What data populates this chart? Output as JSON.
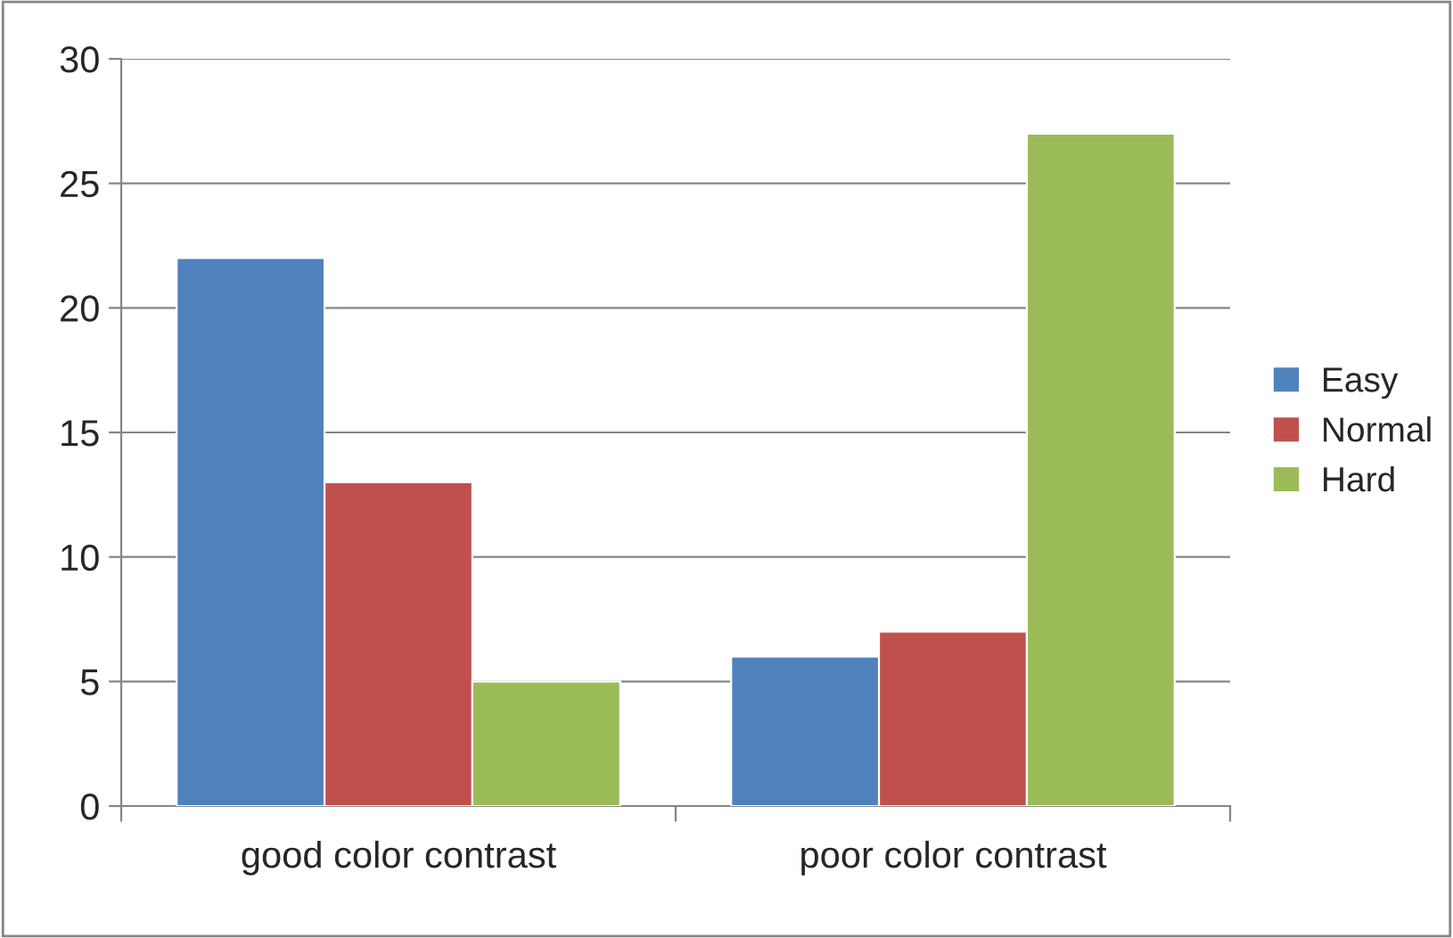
{
  "chart_data": {
    "type": "bar",
    "categories": [
      "good color contrast",
      "poor color contrast"
    ],
    "series": [
      {
        "name": "Easy",
        "color": "#4f81bd",
        "values": [
          22,
          6
        ]
      },
      {
        "name": "Normal",
        "color": "#c0504d",
        "values": [
          13,
          7
        ]
      },
      {
        "name": "Hard",
        "color": "#9bbb59",
        "values": [
          5,
          27
        ]
      }
    ],
    "ylim": [
      0,
      30
    ],
    "yticks": [
      0,
      5,
      10,
      15,
      20,
      25,
      30
    ],
    "grid": "y",
    "legend": "right"
  }
}
